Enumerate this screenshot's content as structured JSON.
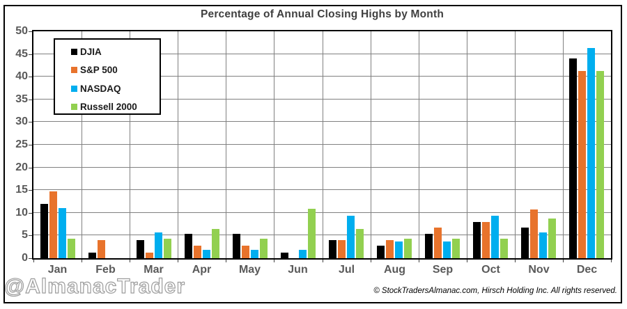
{
  "title": "Percentage of Annual Closing Highs by Month",
  "watermark": "@AlmanacTrader",
  "copyright": "© StockTradersAlmanac.com, Hirsch Holding Inc. All rights reserved.",
  "chart_data": {
    "type": "bar",
    "title": "Percentage of Annual Closing Highs by Month",
    "categories": [
      "Jan",
      "Feb",
      "Mar",
      "Apr",
      "May",
      "Jun",
      "Jul",
      "Aug",
      "Sep",
      "Oct",
      "Nov",
      "Dec"
    ],
    "series": [
      {
        "name": "DJIA",
        "color": "#000000",
        "values": [
          12.0,
          1.3,
          4.0,
          5.3,
          5.3,
          1.3,
          4.0,
          2.7,
          5.3,
          8.0,
          6.7,
          44.0
        ]
      },
      {
        "name": "S&P 500",
        "color": "#E8732C",
        "values": [
          14.7,
          4.0,
          1.3,
          2.7,
          2.7,
          0.0,
          4.0,
          4.0,
          6.7,
          8.0,
          10.7,
          41.3
        ]
      },
      {
        "name": "NASDAQ",
        "color": "#00AEEF",
        "values": [
          11.1,
          0.0,
          5.6,
          1.9,
          1.9,
          1.9,
          9.3,
          3.7,
          3.7,
          9.3,
          5.6,
          46.3
        ]
      },
      {
        "name": "Russell 2000",
        "color": "#92D050",
        "values": [
          4.3,
          0.0,
          4.3,
          6.5,
          4.3,
          10.9,
          6.5,
          4.3,
          4.3,
          4.3,
          8.7,
          41.3
        ]
      }
    ],
    "xlabel": "",
    "ylabel": "",
    "ylim": [
      0,
      50
    ],
    "yticks": [
      0,
      5,
      10,
      15,
      20,
      25,
      30,
      35,
      40,
      45,
      50
    ],
    "grid": true,
    "gridline_color": "#808080",
    "legend_position": "top-left",
    "axis_label_color": "#595959",
    "title_color": "#3f3f3f"
  }
}
